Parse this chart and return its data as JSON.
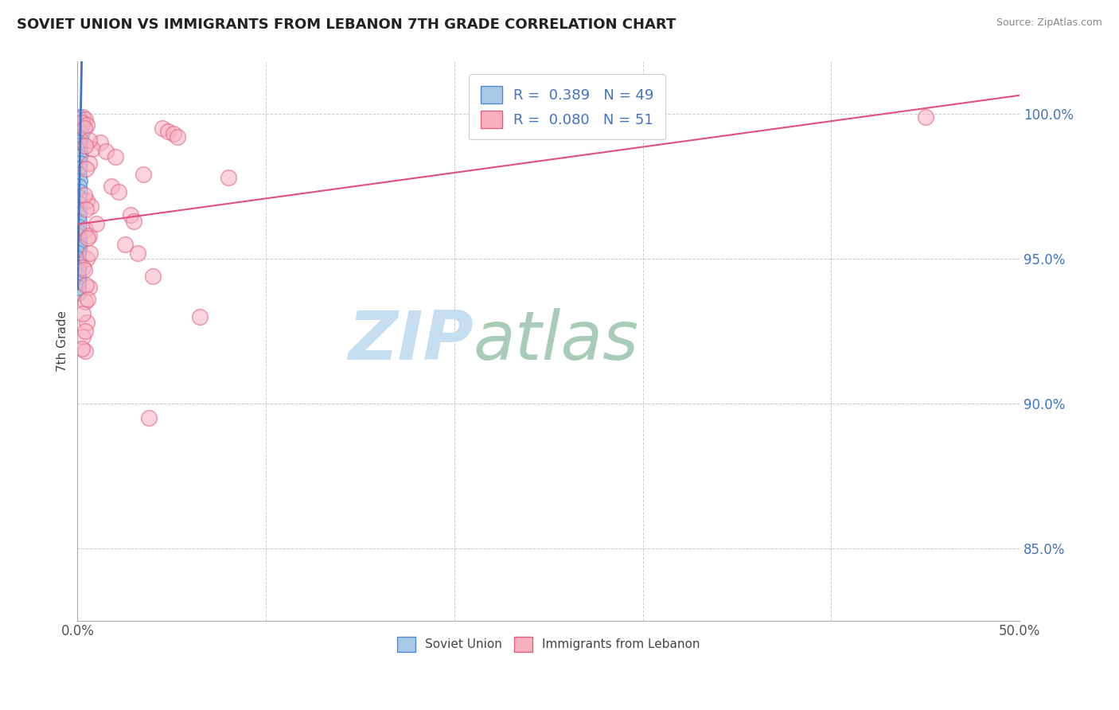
{
  "title": "SOVIET UNION VS IMMIGRANTS FROM LEBANON 7TH GRADE CORRELATION CHART",
  "source": "Source: ZipAtlas.com",
  "ylabel": "7th Grade",
  "xlim": [
    0.0,
    50.0
  ],
  "ylim": [
    82.5,
    101.8
  ],
  "x_ticks": [
    0.0,
    10.0,
    20.0,
    30.0,
    40.0,
    50.0
  ],
  "y_ticks": [
    85.0,
    90.0,
    95.0,
    100.0
  ],
  "legend_entries": [
    {
      "label": "Soviet Union",
      "color": "#a8c8e8",
      "edge": "#5588cc",
      "R": 0.389,
      "N": 49
    },
    {
      "label": "Immigrants from Lebanon",
      "color": "#f8b0c0",
      "edge": "#e06080",
      "R": 0.08,
      "N": 51
    }
  ],
  "soviet_union_points": [
    [
      0.08,
      99.9
    ],
    [
      0.12,
      99.8
    ],
    [
      0.18,
      99.7
    ],
    [
      0.22,
      99.6
    ],
    [
      0.09,
      99.5
    ],
    [
      0.15,
      99.4
    ],
    [
      0.19,
      99.3
    ],
    [
      0.11,
      99.2
    ],
    [
      0.14,
      99.1
    ],
    [
      0.07,
      99.0
    ],
    [
      0.1,
      98.9
    ],
    [
      0.13,
      98.8
    ],
    [
      0.16,
      98.6
    ],
    [
      0.08,
      98.5
    ],
    [
      0.12,
      98.3
    ],
    [
      0.06,
      98.1
    ],
    [
      0.09,
      97.9
    ],
    [
      0.11,
      97.7
    ],
    [
      0.07,
      97.5
    ],
    [
      0.1,
      97.3
    ],
    [
      0.08,
      97.1
    ],
    [
      0.06,
      96.9
    ],
    [
      0.09,
      96.7
    ],
    [
      0.07,
      96.5
    ],
    [
      0.05,
      96.3
    ],
    [
      0.08,
      96.1
    ],
    [
      0.06,
      95.9
    ],
    [
      0.07,
      95.7
    ],
    [
      0.05,
      95.5
    ],
    [
      0.06,
      95.3
    ],
    [
      0.04,
      95.1
    ],
    [
      0.05,
      94.9
    ],
    [
      0.06,
      94.7
    ],
    [
      0.04,
      94.5
    ],
    [
      0.05,
      94.3
    ],
    [
      0.03,
      94.1
    ],
    [
      0.04,
      95.8
    ],
    [
      0.05,
      95.6
    ],
    [
      0.06,
      95.4
    ],
    [
      0.04,
      95.2
    ],
    [
      0.03,
      95.0
    ],
    [
      0.04,
      94.8
    ],
    [
      0.03,
      94.6
    ],
    [
      0.04,
      94.4
    ],
    [
      0.03,
      94.2
    ],
    [
      0.02,
      94.0
    ],
    [
      0.03,
      93.8
    ],
    [
      0.02,
      94.2
    ],
    [
      0.03,
      94.0
    ]
  ],
  "lebanon_points": [
    [
      0.3,
      99.9
    ],
    [
      0.4,
      99.8
    ],
    [
      0.25,
      99.7
    ],
    [
      0.5,
      99.6
    ],
    [
      0.35,
      99.5
    ],
    [
      4.5,
      99.5
    ],
    [
      4.8,
      99.4
    ],
    [
      5.1,
      99.3
    ],
    [
      5.3,
      99.2
    ],
    [
      1.2,
      99.0
    ],
    [
      0.8,
      98.8
    ],
    [
      1.5,
      98.7
    ],
    [
      2.0,
      98.5
    ],
    [
      0.6,
      98.3
    ],
    [
      0.45,
      98.1
    ],
    [
      3.5,
      97.9
    ],
    [
      1.8,
      97.5
    ],
    [
      2.2,
      97.3
    ],
    [
      0.5,
      97.0
    ],
    [
      0.7,
      96.8
    ],
    [
      2.8,
      96.5
    ],
    [
      3.0,
      96.3
    ],
    [
      0.4,
      96.0
    ],
    [
      0.6,
      95.8
    ],
    [
      2.5,
      95.5
    ],
    [
      3.2,
      95.2
    ],
    [
      0.5,
      95.0
    ],
    [
      0.3,
      94.7
    ],
    [
      4.0,
      94.4
    ],
    [
      0.6,
      94.0
    ],
    [
      0.4,
      93.5
    ],
    [
      6.5,
      93.0
    ],
    [
      0.5,
      92.8
    ],
    [
      0.3,
      92.3
    ],
    [
      0.4,
      91.8
    ],
    [
      3.8,
      89.5
    ],
    [
      45.0,
      99.9
    ],
    [
      0.6,
      99.1
    ],
    [
      0.4,
      98.9
    ],
    [
      8.0,
      97.8
    ],
    [
      0.35,
      97.2
    ],
    [
      0.45,
      96.7
    ],
    [
      1.0,
      96.2
    ],
    [
      0.55,
      95.7
    ],
    [
      0.65,
      95.2
    ],
    [
      0.35,
      94.6
    ],
    [
      0.45,
      94.1
    ],
    [
      0.55,
      93.6
    ],
    [
      0.3,
      93.1
    ],
    [
      0.4,
      92.5
    ],
    [
      0.25,
      91.9
    ]
  ],
  "soviet_line_color": "#4472c4",
  "lebanon_line_color": "#e05080",
  "soviet_dot_color": "#a8c8e8",
  "lebanon_dot_color": "#f8b0c0",
  "soviet_edge_color": "#5588cc",
  "lebanon_edge_color": "#e06080",
  "background_color": "#ffffff",
  "grid_color": "#cccccc",
  "watermark_zip": "ZIP",
  "watermark_atlas": "atlas",
  "watermark_color_zip": "#c8e4f0",
  "watermark_color_atlas": "#a0c8b0"
}
